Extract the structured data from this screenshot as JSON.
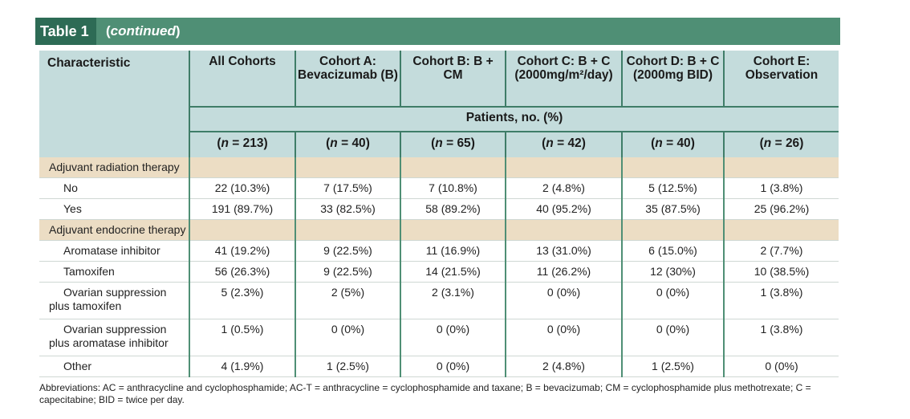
{
  "banner": {
    "table_label": "Table 1",
    "continued_label": "continued",
    "paren_open": "(",
    "paren_close": ")"
  },
  "header": {
    "characteristic": "Characteristic",
    "columns": [
      "All Cohorts",
      "Cohort A: Bevacizumab (B)",
      "Cohort B: B + CM",
      "Cohort C: B + C (2000mg/m²/day)",
      "Cohort D: B + C (2000mg BID)",
      "Cohort E: Observation"
    ],
    "patients_label": "Patients, no. (%)",
    "n_prefix": "n",
    "n_values": [
      "213",
      "40",
      "65",
      "42",
      "40",
      "26"
    ]
  },
  "sections": [
    {
      "title": "Adjuvant radiation therapy",
      "rows": [
        {
          "label": "No",
          "values": [
            "22 (10.3%)",
            "7 (17.5%)",
            "7 (10.8%)",
            "2 (4.8%)",
            "5 (12.5%)",
            "1 (3.8%)"
          ]
        },
        {
          "label": "Yes",
          "values": [
            "191 (89.7%)",
            "33 (82.5%)",
            "58 (89.2%)",
            "40 (95.2%)",
            "35 (87.5%)",
            "25 (96.2%)"
          ]
        }
      ]
    },
    {
      "title": "Adjuvant endocrine therapy",
      "rows": [
        {
          "label": "Aromatase inhibitor",
          "values": [
            "41 (19.2%)",
            "9 (22.5%)",
            "11 (16.9%)",
            "13 (31.0%)",
            "6 (15.0%)",
            "2 (7.7%)"
          ]
        },
        {
          "label": "Tamoxifen",
          "values": [
            "56 (26.3%)",
            "9 (22.5%)",
            "14 (21.5%)",
            "11 (26.2%)",
            "12 (30%)",
            "10 (38.5%)"
          ]
        },
        {
          "label": "Ovarian suppression plus tamoxifen",
          "values": [
            "5 (2.3%)",
            "2 (5%)",
            "2 (3.1%)",
            "0 (0%)",
            "0 (0%)",
            "1 (3.8%)"
          ]
        },
        {
          "label": "Ovarian suppression plus aromatase inhibitor",
          "values": [
            "1 (0.5%)",
            "0 (0%)",
            "0 (0%)",
            "0 (0%)",
            "0 (0%)",
            "1 (3.8%)"
          ]
        },
        {
          "label": "Other",
          "values": [
            "4 (1.9%)",
            "1 (2.5%)",
            "0 (0%)",
            "2 (4.8%)",
            "1 (2.5%)",
            "0 (0%)"
          ]
        }
      ]
    }
  ],
  "footnote": "Abbreviations: AC = anthracycline and cyclophosphamide; AC-T = anthracycline = cyclophosphamide and taxane; B = bevacizumab; CM = cyclophosphamide plus methotrexate; C = capecitabine; BID = twice per day.",
  "colors": {
    "banner": "#4f8f75",
    "banner_tab": "#2d6b55",
    "header_bg": "#c4dcdc",
    "section_bg": "#ecddc4",
    "rule": "#3f7d68"
  }
}
